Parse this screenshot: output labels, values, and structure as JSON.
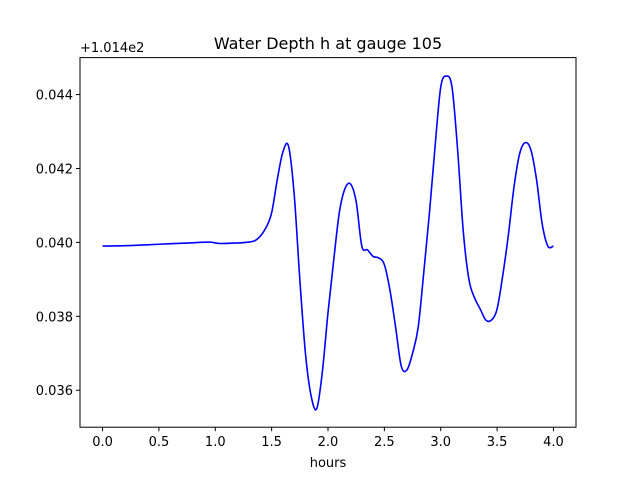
{
  "chart_data": {
    "type": "line",
    "title": "Water Depth h at gauge 105",
    "xlabel": "hours",
    "ylabel": "",
    "y_offset_label": "+1.014e2",
    "xlim": [
      -0.2,
      4.2
    ],
    "ylim": [
      0.035,
      0.045
    ],
    "x_ticks": [
      0.0,
      0.5,
      1.0,
      1.5,
      2.0,
      2.5,
      3.0,
      3.5,
      4.0
    ],
    "x_tick_labels": [
      "0.0",
      "0.5",
      "1.0",
      "1.5",
      "2.0",
      "2.5",
      "3.0",
      "3.5",
      "4.0"
    ],
    "y_ticks": [
      0.036,
      0.038,
      0.04,
      0.042,
      0.044
    ],
    "y_tick_labels": [
      "0.036",
      "0.038",
      "0.040",
      "0.042",
      "0.044"
    ],
    "grid": false,
    "line_color": "#0000ff",
    "series": [
      {
        "x": [
          0.0,
          0.2,
          0.5,
          0.8,
          0.95,
          1.05,
          1.3,
          1.38,
          1.45,
          1.5,
          1.55,
          1.6,
          1.65,
          1.7,
          1.75,
          1.8,
          1.85,
          1.9,
          1.95,
          2.0,
          2.05,
          2.1,
          2.15,
          2.2,
          2.25,
          2.3,
          2.35,
          2.4,
          2.45,
          2.5,
          2.55,
          2.6,
          2.65,
          2.7,
          2.75,
          2.8,
          2.85,
          2.9,
          2.95,
          3.0,
          3.05,
          3.1,
          3.15,
          3.2,
          3.25,
          3.3,
          3.35,
          3.4,
          3.45,
          3.5,
          3.55,
          3.6,
          3.65,
          3.7,
          3.75,
          3.8,
          3.85,
          3.9,
          3.95,
          4.0
        ],
        "y": [
          0.0399,
          0.03991,
          0.03995,
          0.03999,
          0.04001,
          0.03997,
          0.04001,
          0.04011,
          0.0404,
          0.0408,
          0.0417,
          0.04245,
          0.0426,
          0.0413,
          0.039,
          0.037,
          0.03585,
          0.0355,
          0.0365,
          0.0381,
          0.0395,
          0.0408,
          0.04145,
          0.04158,
          0.0411,
          0.0399,
          0.0398,
          0.03962,
          0.03958,
          0.0394,
          0.0387,
          0.0377,
          0.03665,
          0.03655,
          0.037,
          0.0377,
          0.0392,
          0.0408,
          0.0426,
          0.0442,
          0.0445,
          0.0442,
          0.0425,
          0.0403,
          0.039,
          0.0385,
          0.0382,
          0.0379,
          0.0379,
          0.0382,
          0.0391,
          0.0402,
          0.0415,
          0.0424,
          0.0427,
          0.0425,
          0.0417,
          0.0405,
          0.0399,
          0.0399
        ]
      }
    ]
  }
}
